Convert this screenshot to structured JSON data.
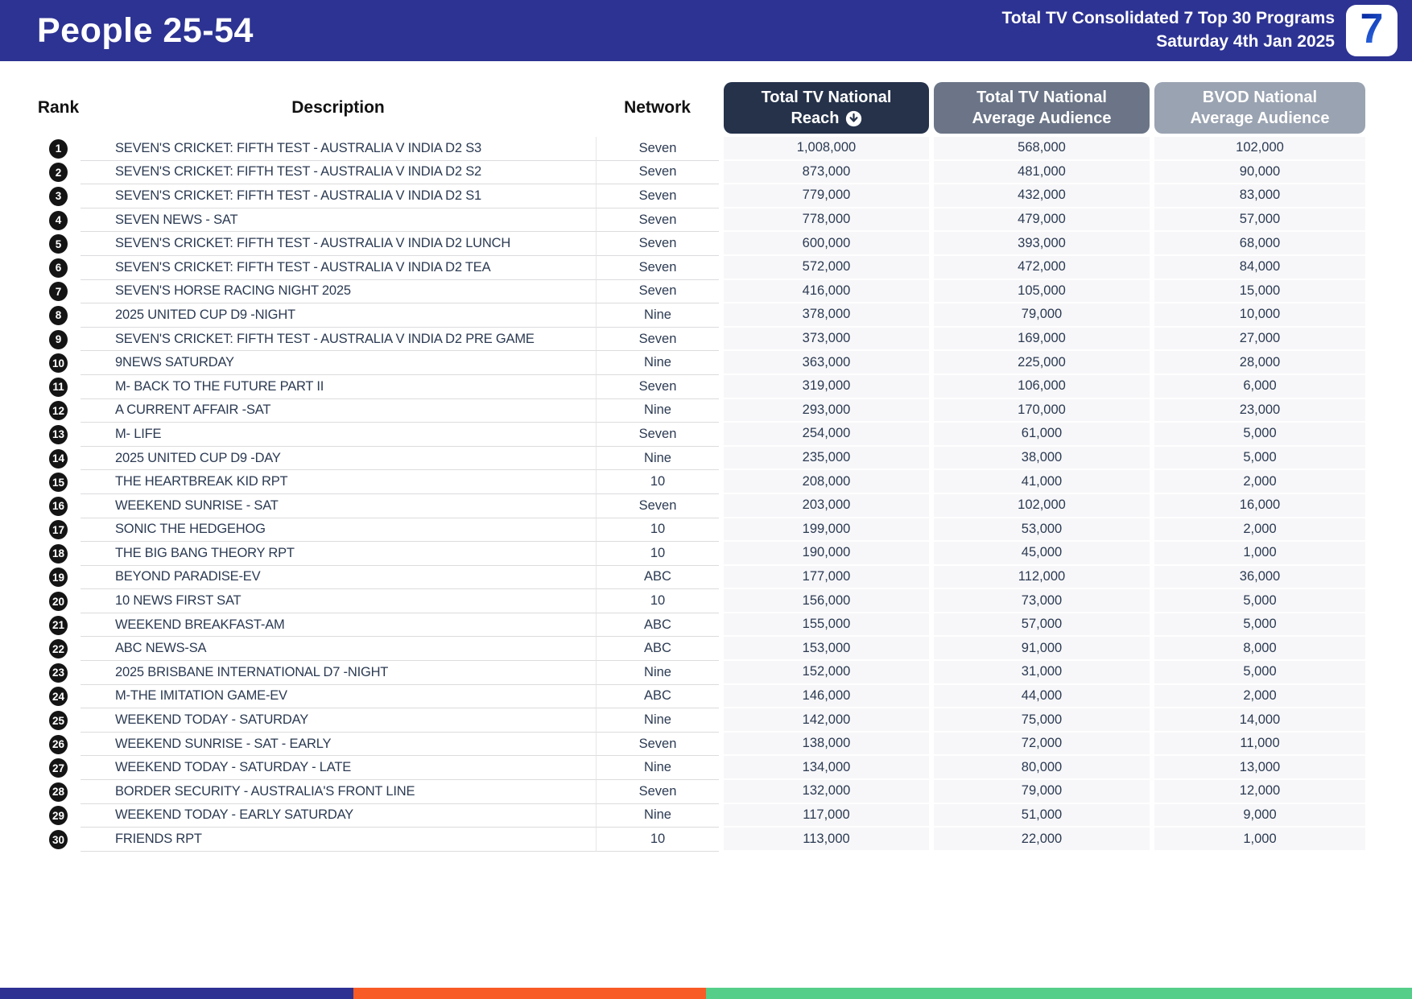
{
  "header": {
    "title": "People 25-54",
    "subtitle_line1": "Total TV Consolidated 7 Top 30 Programs",
    "subtitle_line2": "Saturday 4th Jan 2025",
    "logo_text": "7"
  },
  "table": {
    "columns": {
      "rank": "Rank",
      "description": "Description",
      "network": "Network",
      "reach_line1": "Total TV National",
      "reach_line2": "Reach",
      "reach_sort_icon": "circled-down-arrow-icon",
      "avg_line1": "Total TV National",
      "avg_line2": "Average Audience",
      "bvod_line1": "BVOD National",
      "bvod_line2": "Average Audience"
    },
    "rows": [
      {
        "rank": "1",
        "description": "SEVEN'S CRICKET: FIFTH TEST - AUSTRALIA V INDIA D2 S3",
        "network": "Seven",
        "reach": "1,008,000",
        "avg_audience": "568,000",
        "bvod_audience": "102,000"
      },
      {
        "rank": "2",
        "description": "SEVEN'S CRICKET: FIFTH TEST - AUSTRALIA V INDIA D2 S2",
        "network": "Seven",
        "reach": "873,000",
        "avg_audience": "481,000",
        "bvod_audience": "90,000"
      },
      {
        "rank": "3",
        "description": "SEVEN'S CRICKET: FIFTH TEST - AUSTRALIA V INDIA D2 S1",
        "network": "Seven",
        "reach": "779,000",
        "avg_audience": "432,000",
        "bvod_audience": "83,000"
      },
      {
        "rank": "4",
        "description": "SEVEN NEWS - SAT",
        "network": "Seven",
        "reach": "778,000",
        "avg_audience": "479,000",
        "bvod_audience": "57,000"
      },
      {
        "rank": "5",
        "description": "SEVEN'S CRICKET: FIFTH TEST - AUSTRALIA V INDIA D2 LUNCH",
        "network": "Seven",
        "reach": "600,000",
        "avg_audience": "393,000",
        "bvod_audience": "68,000"
      },
      {
        "rank": "6",
        "description": "SEVEN'S CRICKET: FIFTH TEST - AUSTRALIA V INDIA D2 TEA",
        "network": "Seven",
        "reach": "572,000",
        "avg_audience": "472,000",
        "bvod_audience": "84,000"
      },
      {
        "rank": "7",
        "description": "SEVEN'S HORSE RACING NIGHT 2025",
        "network": "Seven",
        "reach": "416,000",
        "avg_audience": "105,000",
        "bvod_audience": "15,000"
      },
      {
        "rank": "8",
        "description": "2025 UNITED CUP D9 -NIGHT",
        "network": "Nine",
        "reach": "378,000",
        "avg_audience": "79,000",
        "bvod_audience": "10,000"
      },
      {
        "rank": "9",
        "description": "SEVEN'S CRICKET: FIFTH TEST - AUSTRALIA V INDIA D2 PRE GAME",
        "network": "Seven",
        "reach": "373,000",
        "avg_audience": "169,000",
        "bvod_audience": "27,000"
      },
      {
        "rank": "10",
        "description": "9NEWS SATURDAY",
        "network": "Nine",
        "reach": "363,000",
        "avg_audience": "225,000",
        "bvod_audience": "28,000"
      },
      {
        "rank": "11",
        "description": "M- BACK TO THE FUTURE PART II",
        "network": "Seven",
        "reach": "319,000",
        "avg_audience": "106,000",
        "bvod_audience": "6,000"
      },
      {
        "rank": "12",
        "description": "A CURRENT AFFAIR -SAT",
        "network": "Nine",
        "reach": "293,000",
        "avg_audience": "170,000",
        "bvod_audience": "23,000"
      },
      {
        "rank": "13",
        "description": "M- LIFE",
        "network": "Seven",
        "reach": "254,000",
        "avg_audience": "61,000",
        "bvod_audience": "5,000"
      },
      {
        "rank": "14",
        "description": "2025 UNITED CUP D9 -DAY",
        "network": "Nine",
        "reach": "235,000",
        "avg_audience": "38,000",
        "bvod_audience": "5,000"
      },
      {
        "rank": "15",
        "description": "THE HEARTBREAK KID RPT",
        "network": "10",
        "reach": "208,000",
        "avg_audience": "41,000",
        "bvod_audience": "2,000"
      },
      {
        "rank": "16",
        "description": "WEEKEND SUNRISE - SAT",
        "network": "Seven",
        "reach": "203,000",
        "avg_audience": "102,000",
        "bvod_audience": "16,000"
      },
      {
        "rank": "17",
        "description": "SONIC THE HEDGEHOG",
        "network": "10",
        "reach": "199,000",
        "avg_audience": "53,000",
        "bvod_audience": "2,000"
      },
      {
        "rank": "18",
        "description": "THE BIG BANG THEORY RPT",
        "network": "10",
        "reach": "190,000",
        "avg_audience": "45,000",
        "bvod_audience": "1,000"
      },
      {
        "rank": "19",
        "description": "BEYOND PARADISE-EV",
        "network": "ABC",
        "reach": "177,000",
        "avg_audience": "112,000",
        "bvod_audience": "36,000"
      },
      {
        "rank": "20",
        "description": "10 NEWS FIRST SAT",
        "network": "10",
        "reach": "156,000",
        "avg_audience": "73,000",
        "bvod_audience": "5,000"
      },
      {
        "rank": "21",
        "description": "WEEKEND BREAKFAST-AM",
        "network": "ABC",
        "reach": "155,000",
        "avg_audience": "57,000",
        "bvod_audience": "5,000"
      },
      {
        "rank": "22",
        "description": "ABC NEWS-SA",
        "network": "ABC",
        "reach": "153,000",
        "avg_audience": "91,000",
        "bvod_audience": "8,000"
      },
      {
        "rank": "23",
        "description": "2025 BRISBANE INTERNATIONAL D7 -NIGHT",
        "network": "Nine",
        "reach": "152,000",
        "avg_audience": "31,000",
        "bvod_audience": "5,000"
      },
      {
        "rank": "24",
        "description": "M-THE IMITATION GAME-EV",
        "network": "ABC",
        "reach": "146,000",
        "avg_audience": "44,000",
        "bvod_audience": "2,000"
      },
      {
        "rank": "25",
        "description": "WEEKEND TODAY - SATURDAY",
        "network": "Nine",
        "reach": "142,000",
        "avg_audience": "75,000",
        "bvod_audience": "14,000"
      },
      {
        "rank": "26",
        "description": "WEEKEND SUNRISE - SAT - EARLY",
        "network": "Seven",
        "reach": "138,000",
        "avg_audience": "72,000",
        "bvod_audience": "11,000"
      },
      {
        "rank": "27",
        "description": "WEEKEND TODAY - SATURDAY - LATE",
        "network": "Nine",
        "reach": "134,000",
        "avg_audience": "80,000",
        "bvod_audience": "13,000"
      },
      {
        "rank": "28",
        "description": "BORDER SECURITY - AUSTRALIA'S FRONT LINE",
        "network": "Seven",
        "reach": "132,000",
        "avg_audience": "79,000",
        "bvod_audience": "12,000"
      },
      {
        "rank": "29",
        "description": "WEEKEND TODAY - EARLY SATURDAY",
        "network": "Nine",
        "reach": "117,000",
        "avg_audience": "51,000",
        "bvod_audience": "9,000"
      },
      {
        "rank": "30",
        "description": "FRIENDS RPT",
        "network": "10",
        "reach": "113,000",
        "avg_audience": "22,000",
        "bvod_audience": "1,000"
      }
    ]
  },
  "footer": {
    "segments": [
      {
        "name": "blue",
        "color": "#2E3192",
        "width_pct": 25
      },
      {
        "name": "orange",
        "color": "#F95B26",
        "width_pct": 25
      },
      {
        "name": "green",
        "color": "#55CE8A",
        "width_pct": 50
      }
    ]
  },
  "colors": {
    "banner_blue": "#2D3392",
    "pill_dark": "#25324A",
    "pill_mid": "#6B7587",
    "pill_light": "#9AA3B1",
    "value_cell_bg": "#F7F7F9",
    "row_text": "#2B3A52",
    "rank_badge": "#141414"
  }
}
